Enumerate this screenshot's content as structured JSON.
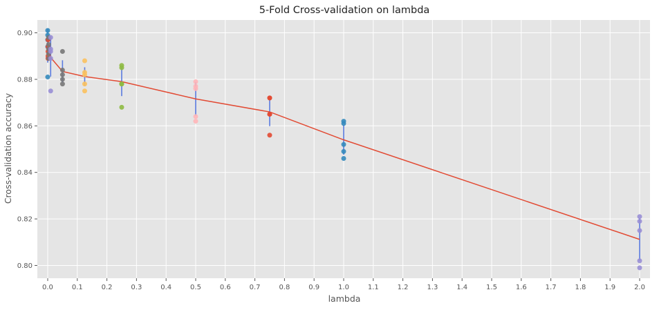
{
  "chart_data": {
    "type": "scatter",
    "title": "5-Fold Cross-validation on lambda",
    "xlabel": "lambda",
    "ylabel": "Cross-validation accuracy",
    "xlim": [
      -0.035,
      2.035
    ],
    "ylim": [
      0.7945,
      0.9055
    ],
    "xticks": [
      0.0,
      0.1,
      0.2,
      0.3,
      0.4,
      0.5,
      0.6,
      0.7,
      0.8,
      0.9,
      1.0,
      1.1,
      1.2,
      1.3,
      1.4,
      1.5,
      1.6,
      1.7,
      1.8,
      1.9,
      2.0
    ],
    "xtick_labels": [
      "0.0",
      "0.1",
      "0.2",
      "0.3",
      "0.4",
      "0.5",
      "0.6",
      "0.7",
      "0.8",
      "0.9",
      "1.0",
      "1.1",
      "1.2",
      "1.3",
      "1.4",
      "1.5",
      "1.6",
      "1.7",
      "1.8",
      "1.9",
      "2.0"
    ],
    "yticks": [
      0.8,
      0.82,
      0.84,
      0.86,
      0.88,
      0.9
    ],
    "ytick_labels": [
      "0.80",
      "0.82",
      "0.84",
      "0.86",
      "0.88",
      "0.90"
    ],
    "grid": true,
    "style": {
      "background": "#E5E5E5",
      "grid_color": "#FFFFFF",
      "text_color": "#555555",
      "mean_line_color": "#E24A33",
      "errorbar_color": "#5A7BE0"
    },
    "points": [
      {
        "lambda": 0.0,
        "color": "#348ABD",
        "values": [
          0.901,
          0.899,
          0.897,
          0.894,
          0.881
        ]
      },
      {
        "lambda": 0.001,
        "color": "#E24A33",
        "values": [
          0.897,
          0.894,
          0.892,
          0.89,
          0.889
        ]
      },
      {
        "lambda": 0.003,
        "color": "#777777",
        "values": [
          0.898,
          0.895,
          0.893,
          0.891,
          0.889
        ]
      },
      {
        "lambda": 0.01,
        "color": "#988ED5",
        "values": [
          0.898,
          0.893,
          0.892,
          0.889,
          0.875
        ]
      },
      {
        "lambda": 0.05,
        "color": "#777777",
        "values": [
          0.892,
          0.884,
          0.882,
          0.88,
          0.878
        ]
      },
      {
        "lambda": 0.125,
        "color": "#FBC15E",
        "values": [
          0.888,
          0.883,
          0.882,
          0.878,
          0.875
        ]
      },
      {
        "lambda": 0.25,
        "color": "#8EBA42",
        "values": [
          0.886,
          0.885,
          0.878,
          0.878,
          0.868
        ]
      },
      {
        "lambda": 0.5,
        "color": "#FFB5B8",
        "values": [
          0.879,
          0.877,
          0.876,
          0.864,
          0.862
        ]
      },
      {
        "lambda": 0.75,
        "color": "#E24A33",
        "values": [
          0.872,
          0.872,
          0.865,
          0.865,
          0.856
        ]
      },
      {
        "lambda": 1.0,
        "color": "#348ABD",
        "values": [
          0.862,
          0.861,
          0.852,
          0.849,
          0.846
        ]
      },
      {
        "lambda": 2.0,
        "color": "#988ED5",
        "values": [
          0.821,
          0.819,
          0.815,
          0.802,
          0.799
        ]
      }
    ],
    "mean_line": {
      "x": [
        0.0,
        0.001,
        0.003,
        0.01,
        0.05,
        0.125,
        0.25,
        0.5,
        0.75,
        1.0,
        2.0
      ],
      "y": [
        0.8945,
        0.8925,
        0.8932,
        0.8894,
        0.8834,
        0.8812,
        0.879,
        0.8716,
        0.866,
        0.854,
        0.8112
      ]
    },
    "errorbars": [
      {
        "x": 0.0,
        "low": 0.8872,
        "high": 0.9018
      },
      {
        "x": 0.001,
        "low": 0.8898,
        "high": 0.8952
      },
      {
        "x": 0.01,
        "low": 0.8812,
        "high": 0.8976
      },
      {
        "x": 0.05,
        "low": 0.8786,
        "high": 0.8882
      },
      {
        "x": 0.125,
        "low": 0.8772,
        "high": 0.8852
      },
      {
        "x": 0.25,
        "low": 0.8728,
        "high": 0.8852
      },
      {
        "x": 0.5,
        "low": 0.8643,
        "high": 0.8789
      },
      {
        "x": 0.75,
        "low": 0.8599,
        "high": 0.8721
      },
      {
        "x": 1.0,
        "low": 0.8476,
        "high": 0.8604
      },
      {
        "x": 2.0,
        "low": 0.8021,
        "high": 0.8203
      }
    ]
  }
}
